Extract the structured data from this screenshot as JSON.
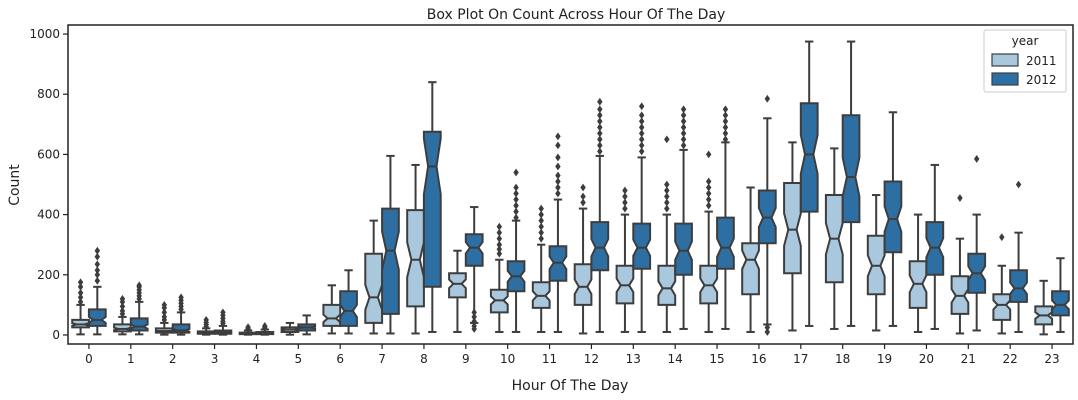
{
  "chart_data": {
    "type": "box",
    "title": "Box Plot On Count Across Hour Of The Day",
    "xlabel": "Hour Of The Day",
    "ylabel": "Count",
    "ylim": [
      -30,
      1030
    ],
    "yticks": [
      0,
      200,
      400,
      600,
      800,
      1000
    ],
    "categories": [
      "0",
      "1",
      "2",
      "3",
      "4",
      "5",
      "6",
      "7",
      "8",
      "9",
      "10",
      "11",
      "12",
      "13",
      "14",
      "15",
      "16",
      "17",
      "18",
      "19",
      "20",
      "21",
      "22",
      "23"
    ],
    "legend": {
      "title": "year",
      "position": "top-right"
    },
    "series": [
      {
        "name": "2011",
        "color": "#a9c8de",
        "boxes": [
          {
            "whislo": 2,
            "q1": 25,
            "med": 35,
            "q3": 50,
            "whishi": 100,
            "fliers": [
              110,
              125,
              140,
              160,
              175
            ]
          },
          {
            "whislo": 2,
            "q1": 12,
            "med": 20,
            "q3": 35,
            "whishi": 60,
            "fliers": [
              70,
              80,
              95,
              110,
              120
            ]
          },
          {
            "whislo": 1,
            "q1": 8,
            "med": 13,
            "q3": 22,
            "whishi": 40,
            "fliers": [
              50,
              60,
              75,
              90,
              100
            ]
          },
          {
            "whislo": 1,
            "q1": 4,
            "med": 7,
            "q3": 12,
            "whishi": 22,
            "fliers": [
              28,
              35,
              42,
              50
            ]
          },
          {
            "whislo": 1,
            "q1": 3,
            "med": 5,
            "q3": 8,
            "whishi": 15,
            "fliers": [
              18,
              22,
              26
            ]
          },
          {
            "whislo": 1,
            "q1": 10,
            "med": 18,
            "q3": 25,
            "whishi": 40,
            "fliers": []
          },
          {
            "whislo": 5,
            "q1": 30,
            "med": 55,
            "q3": 100,
            "whishi": 165,
            "fliers": []
          },
          {
            "whislo": 5,
            "q1": 40,
            "med": 125,
            "q3": 270,
            "whishi": 380,
            "fliers": []
          },
          {
            "whislo": 5,
            "q1": 95,
            "med": 250,
            "q3": 415,
            "whishi": 565,
            "fliers": []
          },
          {
            "whislo": 10,
            "q1": 125,
            "med": 170,
            "q3": 205,
            "whishi": 280,
            "fliers": []
          },
          {
            "whislo": 10,
            "q1": 75,
            "med": 115,
            "q3": 150,
            "whishi": 250,
            "fliers": [
              270,
              285,
              300,
              320,
              340,
              360
            ]
          },
          {
            "whislo": 10,
            "q1": 90,
            "med": 130,
            "q3": 175,
            "whishi": 300,
            "fliers": [
              320,
              340,
              360,
              380,
              400,
              420
            ]
          },
          {
            "whislo": 5,
            "q1": 100,
            "med": 160,
            "q3": 235,
            "whishi": 420,
            "fliers": [
              440,
              460,
              490
            ]
          },
          {
            "whislo": 10,
            "q1": 105,
            "med": 165,
            "q3": 230,
            "whishi": 400,
            "fliers": [
              420,
              440,
              460,
              480
            ]
          },
          {
            "whislo": 10,
            "q1": 100,
            "med": 155,
            "q3": 230,
            "whishi": 400,
            "fliers": [
              420,
              440,
              460,
              480,
              500,
              650
            ]
          },
          {
            "whislo": 10,
            "q1": 105,
            "med": 165,
            "q3": 230,
            "whishi": 410,
            "fliers": [
              430,
              450,
              470,
              490,
              510,
              600
            ]
          },
          {
            "whislo": 10,
            "q1": 135,
            "med": 250,
            "q3": 305,
            "whishi": 490,
            "fliers": []
          },
          {
            "whislo": 15,
            "q1": 205,
            "med": 350,
            "q3": 505,
            "whishi": 640,
            "fliers": []
          },
          {
            "whislo": 20,
            "q1": 175,
            "med": 320,
            "q3": 465,
            "whishi": 620,
            "fliers": []
          },
          {
            "whislo": 15,
            "q1": 135,
            "med": 230,
            "q3": 330,
            "whishi": 465,
            "fliers": []
          },
          {
            "whislo": 10,
            "q1": 90,
            "med": 170,
            "q3": 245,
            "whishi": 400,
            "fliers": []
          },
          {
            "whislo": 5,
            "q1": 70,
            "med": 130,
            "q3": 195,
            "whishi": 320,
            "fliers": [
              455
            ]
          },
          {
            "whislo": 5,
            "q1": 50,
            "med": 100,
            "q3": 135,
            "whishi": 230,
            "fliers": [
              325
            ]
          },
          {
            "whislo": 2,
            "q1": 35,
            "med": 65,
            "q3": 95,
            "whishi": 180,
            "fliers": []
          }
        ]
      },
      {
        "name": "2012",
        "color": "#2e6fa3",
        "boxes": [
          {
            "whislo": 2,
            "q1": 30,
            "med": 50,
            "q3": 85,
            "whishi": 160,
            "fliers": [
              180,
              200,
              215,
              235,
              260,
              280
            ]
          },
          {
            "whislo": 2,
            "q1": 15,
            "med": 28,
            "q3": 55,
            "whishi": 110,
            "fliers": [
              120,
              130,
              140,
              150,
              160,
              165
            ]
          },
          {
            "whislo": 1,
            "q1": 8,
            "med": 15,
            "q3": 35,
            "whishi": 75,
            "fliers": [
              85,
              95,
              105,
              115,
              125
            ]
          },
          {
            "whislo": 1,
            "q1": 4,
            "med": 8,
            "q3": 15,
            "whishi": 30,
            "fliers": [
              38,
              45,
              55,
              65,
              75
            ]
          },
          {
            "whislo": 1,
            "q1": 3,
            "med": 6,
            "q3": 10,
            "whishi": 18,
            "fliers": [
              22,
              26,
              30
            ]
          },
          {
            "whislo": 2,
            "q1": 15,
            "med": 25,
            "q3": 35,
            "whishi": 65,
            "fliers": []
          },
          {
            "whislo": 5,
            "q1": 30,
            "med": 80,
            "q3": 145,
            "whishi": 215,
            "fliers": []
          },
          {
            "whislo": 5,
            "q1": 70,
            "med": 280,
            "q3": 420,
            "whishi": 595,
            "fliers": []
          },
          {
            "whislo": 10,
            "q1": 160,
            "med": 560,
            "q3": 675,
            "whishi": 840,
            "fliers": []
          },
          {
            "whislo": 40,
            "q1": 230,
            "med": 290,
            "q3": 335,
            "whishi": 425,
            "fliers": [
              20,
              30,
              45,
              60,
              75
            ]
          },
          {
            "whislo": 10,
            "q1": 145,
            "med": 195,
            "q3": 245,
            "whishi": 380,
            "fliers": [
              390,
              410,
              430,
              450,
              470,
              490,
              540
            ]
          },
          {
            "whislo": 10,
            "q1": 180,
            "med": 240,
            "q3": 295,
            "whishi": 450,
            "fliers": [
              470,
              490,
              510,
              530,
              560,
              590,
              630,
              660
            ]
          },
          {
            "whislo": 10,
            "q1": 215,
            "med": 290,
            "q3": 375,
            "whishi": 595,
            "fliers": [
              610,
              630,
              650,
              670,
              690,
              710,
              730,
              750,
              775
            ]
          },
          {
            "whislo": 10,
            "q1": 220,
            "med": 290,
            "q3": 370,
            "whishi": 590,
            "fliers": [
              610,
              630,
              650,
              670,
              690,
              710,
              730,
              760
            ]
          },
          {
            "whislo": 20,
            "q1": 200,
            "med": 280,
            "q3": 370,
            "whishi": 615,
            "fliers": [
              630,
              650,
              670,
              690,
              710,
              730,
              750
            ]
          },
          {
            "whislo": 20,
            "q1": 220,
            "med": 290,
            "q3": 390,
            "whishi": 640,
            "fliers": [
              650,
              670,
              690,
              710,
              730,
              750
            ]
          },
          {
            "whislo": 35,
            "q1": 305,
            "med": 390,
            "q3": 480,
            "whishi": 720,
            "fliers": [
              10,
              25,
              785
            ]
          },
          {
            "whislo": 30,
            "q1": 410,
            "med": 600,
            "q3": 770,
            "whishi": 975,
            "fliers": []
          },
          {
            "whislo": 30,
            "q1": 375,
            "med": 525,
            "q3": 730,
            "whishi": 975,
            "fliers": []
          },
          {
            "whislo": 30,
            "q1": 275,
            "med": 385,
            "q3": 510,
            "whishi": 740,
            "fliers": []
          },
          {
            "whislo": 20,
            "q1": 200,
            "med": 290,
            "q3": 375,
            "whishi": 565,
            "fliers": []
          },
          {
            "whislo": 15,
            "q1": 140,
            "med": 205,
            "q3": 270,
            "whishi": 400,
            "fliers": [
              585
            ]
          },
          {
            "whislo": 10,
            "q1": 110,
            "med": 155,
            "q3": 215,
            "whishi": 340,
            "fliers": [
              500
            ]
          },
          {
            "whislo": 10,
            "q1": 65,
            "med": 100,
            "q3": 145,
            "whishi": 255,
            "fliers": []
          }
        ]
      }
    ]
  }
}
